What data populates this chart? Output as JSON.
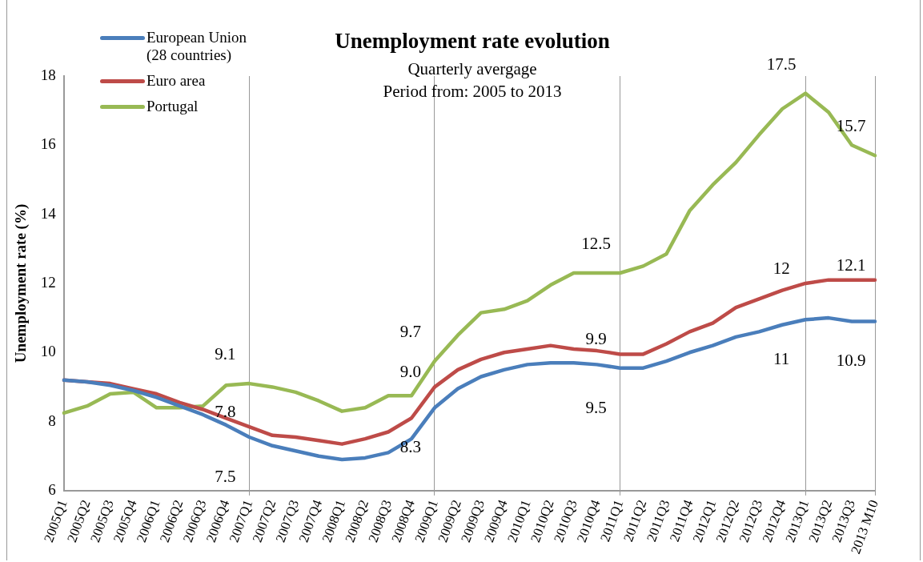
{
  "chart_data": {
    "type": "line",
    "title": "Unemployment rate evolution",
    "subtitle": "Quarterly avergage\nPeriod from: 2005 to 2013",
    "ylabel": "Unemployment rate (%)",
    "categories": [
      "2005Q1",
      "2005Q2",
      "2005Q3",
      "2005Q4",
      "2006Q1",
      "2006Q2",
      "2006Q3",
      "2006Q4",
      "2007Q1",
      "2007Q2",
      "2007Q3",
      "2007Q4",
      "2008Q1",
      "2008Q2",
      "2008Q3",
      "2008Q4",
      "2009Q1",
      "2009Q2",
      "2009Q3",
      "2009Q4",
      "2010Q1",
      "2010Q2",
      "2010Q3",
      "2010Q4",
      "2011Q1",
      "2011Q2",
      "2011Q3",
      "2011Q4",
      "2012Q1",
      "2012Q2",
      "2012Q3",
      "2012Q4",
      "2013Q1",
      "2013Q2",
      "2013Q3",
      "2013 M10"
    ],
    "series": [
      {
        "name": "European Union\n(28 countries)",
        "color": "#4a7ebb",
        "values": [
          9.2,
          9.15,
          9.05,
          8.9,
          8.7,
          8.45,
          8.2,
          7.9,
          7.55,
          7.3,
          7.15,
          7.0,
          6.9,
          6.95,
          7.1,
          7.5,
          8.4,
          8.95,
          9.3,
          9.5,
          9.65,
          9.7,
          9.7,
          9.65,
          9.55,
          9.55,
          9.75,
          10.0,
          10.2,
          10.45,
          10.6,
          10.8,
          10.95,
          11.0,
          10.9,
          10.9
        ]
      },
      {
        "name": "Euro area",
        "color": "#be4b48",
        "values": [
          9.2,
          9.15,
          9.1,
          8.95,
          8.8,
          8.55,
          8.35,
          8.1,
          7.85,
          7.6,
          7.55,
          7.45,
          7.35,
          7.5,
          7.7,
          8.1,
          9.0,
          9.5,
          9.8,
          10.0,
          10.1,
          10.2,
          10.1,
          10.05,
          9.95,
          9.95,
          10.25,
          10.6,
          10.85,
          11.3,
          11.55,
          11.8,
          12.0,
          12.1,
          12.1,
          12.1
        ]
      },
      {
        "name": "Portugal",
        "color": "#98b954",
        "values": [
          8.25,
          8.45,
          8.8,
          8.85,
          8.4,
          8.4,
          8.45,
          9.05,
          9.1,
          9.0,
          8.85,
          8.6,
          8.3,
          8.4,
          8.75,
          8.75,
          9.75,
          10.5,
          11.15,
          11.25,
          11.5,
          11.95,
          12.3,
          12.3,
          12.3,
          12.5,
          12.85,
          14.1,
          14.85,
          15.5,
          16.3,
          17.05,
          17.5,
          16.95,
          16.0,
          15.7
        ]
      }
    ],
    "ylim": [
      6,
      18
    ],
    "yticks": [
      6,
      8,
      10,
      12,
      14,
      16,
      18
    ],
    "grid": "x",
    "legend": "top left",
    "marker": "none",
    "line_style": "solid",
    "annotations": [
      {
        "text": "9.1",
        "x": "2007Q1",
        "y": 9.1
      },
      {
        "text": "7.8",
        "x": "2007Q1",
        "y": 7.85
      },
      {
        "text": "7.5",
        "x": "2007Q1",
        "y": 7.55
      },
      {
        "text": "9.7",
        "x": "2009Q1",
        "y": 9.75
      },
      {
        "text": "9.0",
        "x": "2009Q1",
        "y": 9.0
      },
      {
        "text": "8.3",
        "x": "2009Q1",
        "y": 8.4
      },
      {
        "text": "12.5",
        "x": "2011Q1",
        "y": 12.3
      },
      {
        "text": "9.9",
        "x": "2011Q1",
        "y": 9.95
      },
      {
        "text": "9.5",
        "x": "2011Q1",
        "y": 9.55
      },
      {
        "text": "17.5",
        "x": "2013Q1",
        "y": 17.5
      },
      {
        "text": "12",
        "x": "2013Q1",
        "y": 12.0
      },
      {
        "text": "11",
        "x": "2013Q1",
        "y": 10.95
      },
      {
        "text": "15.7",
        "x": "2013 M10",
        "y": 15.7
      },
      {
        "text": "12.1",
        "x": "2013 M10",
        "y": 12.1
      },
      {
        "text": "10.9",
        "x": "2013 M10",
        "y": 10.9
      }
    ]
  }
}
